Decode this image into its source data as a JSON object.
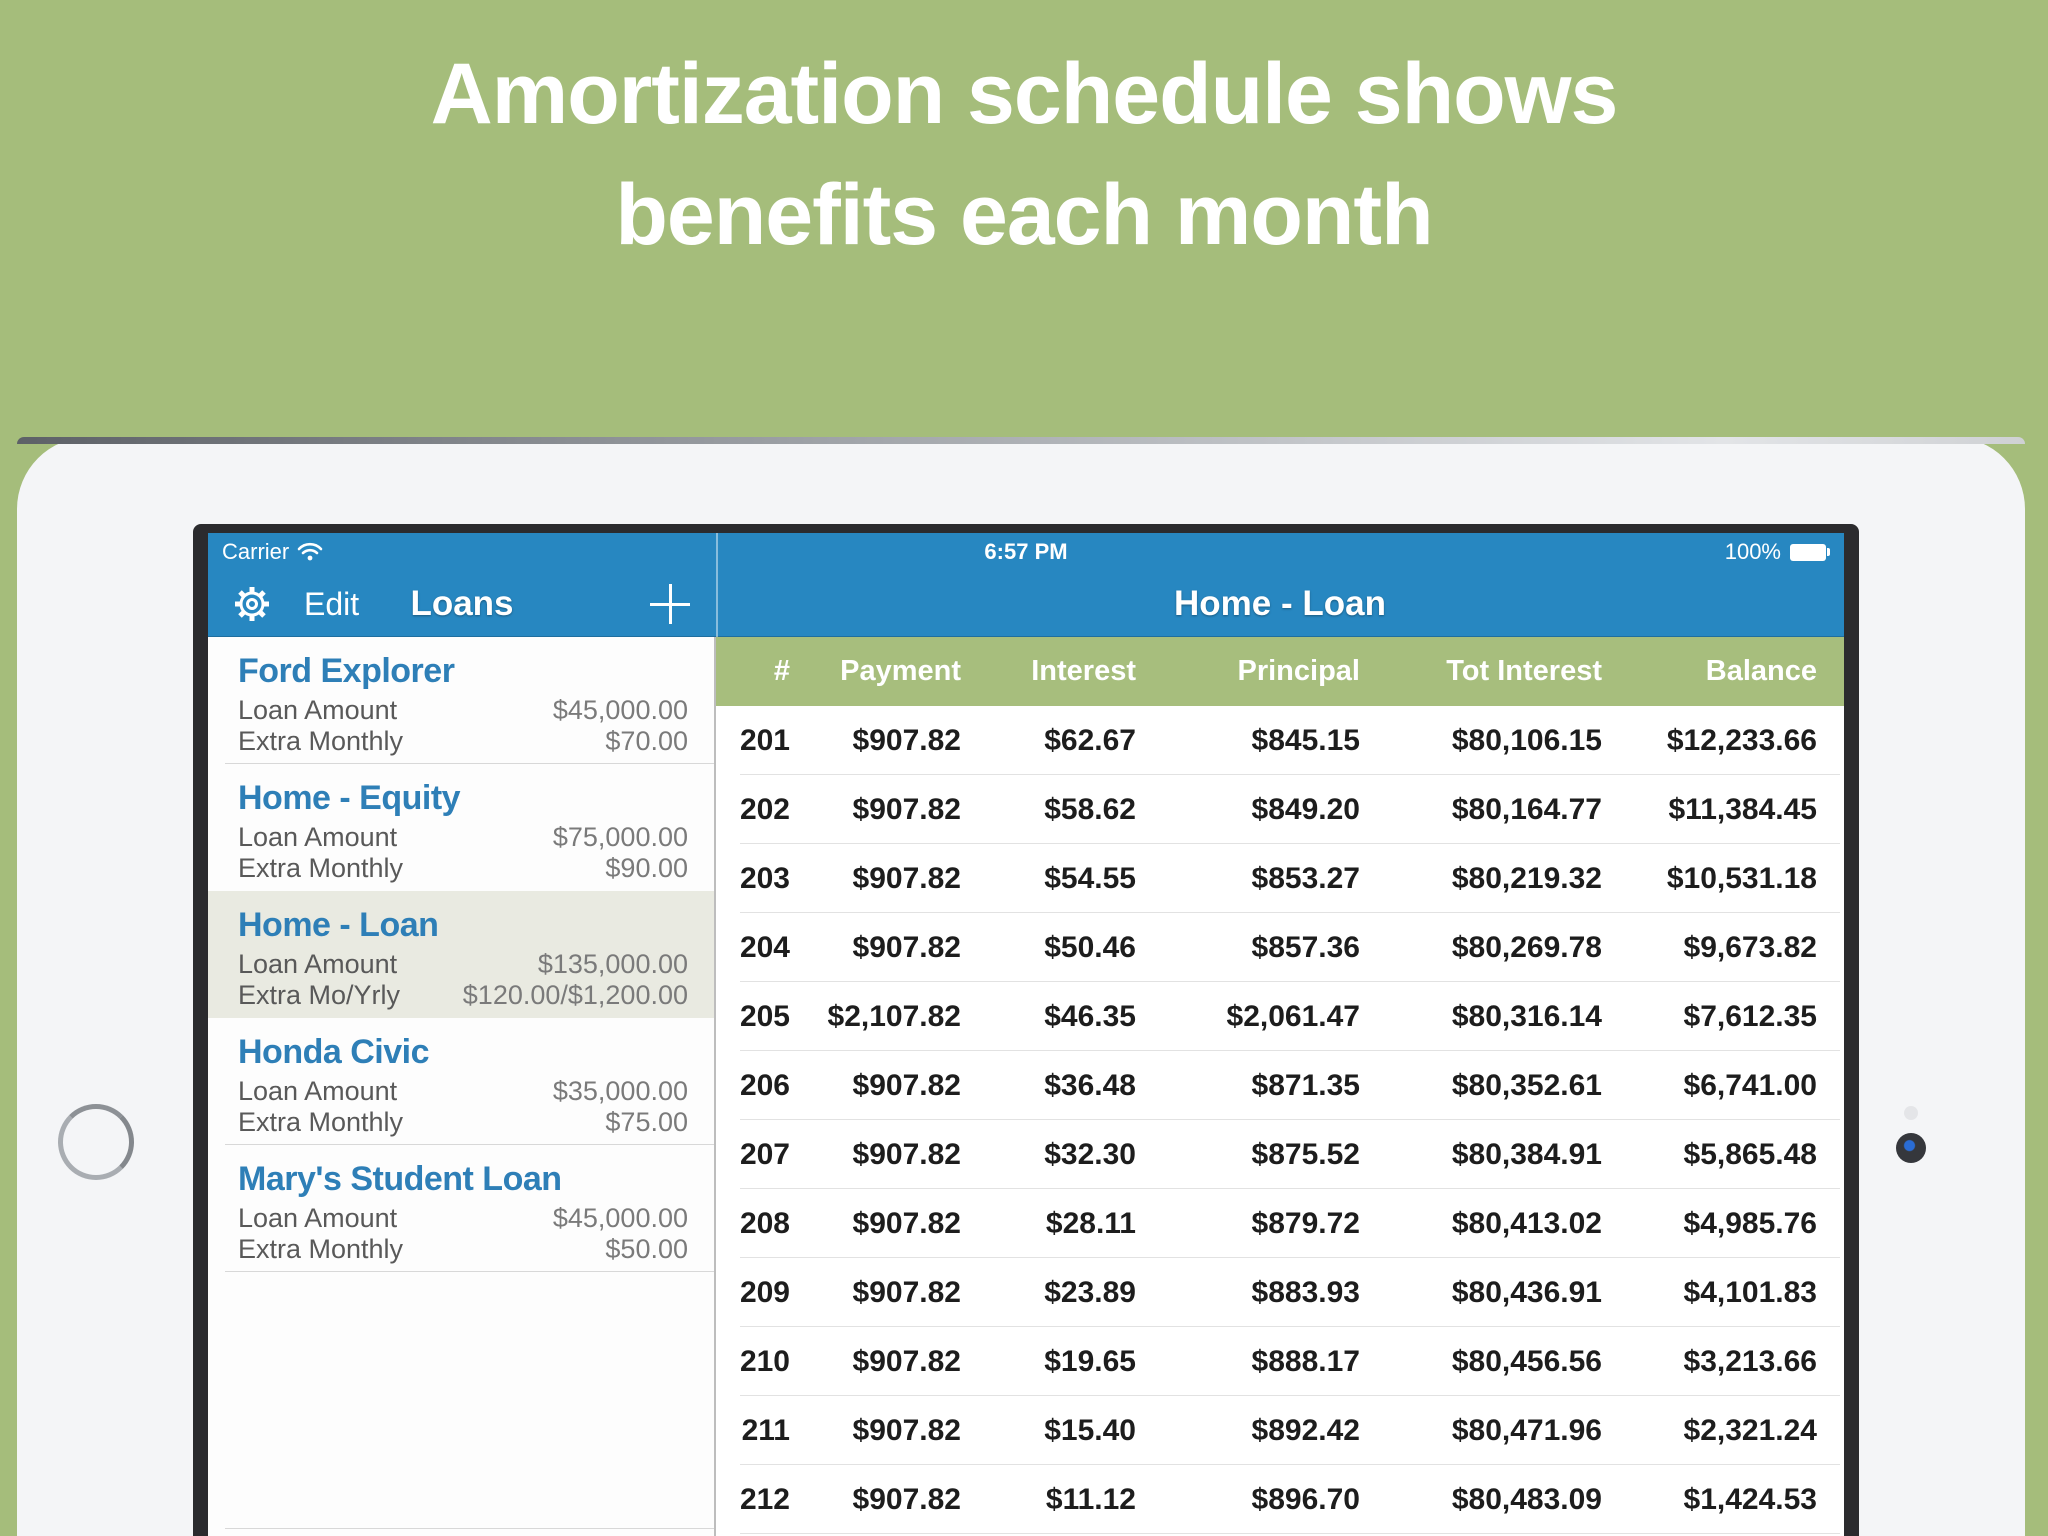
{
  "page": {
    "headline_line1": "Amortization schedule shows",
    "headline_line2": "benefits each month"
  },
  "colors": {
    "background_green": "#a5bd7b",
    "nav_blue": "#2787c1",
    "table_header_green": "#a7be7d",
    "loan_title_blue": "#2e7fb7",
    "selected_item_bg": "#e9eae1"
  },
  "status_bar": {
    "carrier": "Carrier",
    "time": "6:57 PM",
    "battery_percent": "100%",
    "icons": {
      "wifi": "wifi-icon",
      "battery": "battery-icon"
    }
  },
  "sidebar": {
    "nav": {
      "settings_icon": "gear-icon",
      "edit_label": "Edit",
      "title": "Loans",
      "add_icon": "plus-icon"
    },
    "loans": [
      {
        "name": "Ford Explorer",
        "selected": false,
        "divider": true,
        "rows": [
          {
            "label": "Loan Amount",
            "value": "$45,000.00"
          },
          {
            "label": "Extra Monthly",
            "value": "$70.00"
          }
        ]
      },
      {
        "name": "Home - Equity",
        "selected": false,
        "divider": false,
        "rows": [
          {
            "label": "Loan Amount",
            "value": "$75,000.00"
          },
          {
            "label": "Extra Monthly",
            "value": "$90.00"
          }
        ]
      },
      {
        "name": "Home - Loan",
        "selected": true,
        "divider": false,
        "rows": [
          {
            "label": "Loan Amount",
            "value": "$135,000.00"
          },
          {
            "label": "Extra Mo/Yrly",
            "value": "$120.00/$1,200.00"
          }
        ]
      },
      {
        "name": "Honda Civic",
        "selected": false,
        "divider": true,
        "rows": [
          {
            "label": "Loan Amount",
            "value": "$35,000.00"
          },
          {
            "label": "Extra Monthly",
            "value": "$75.00"
          }
        ]
      },
      {
        "name": "Mary's Student Loan",
        "selected": false,
        "divider": true,
        "rows": [
          {
            "label": "Loan Amount",
            "value": "$45,000.00"
          },
          {
            "label": "Extra Monthly",
            "value": "$50.00"
          }
        ]
      }
    ]
  },
  "detail": {
    "title": "Home - Loan",
    "table": {
      "columns": [
        "#",
        "Payment",
        "Interest",
        "Principal",
        "Tot Interest",
        "Balance"
      ],
      "rows": [
        [
          "201",
          "$907.82",
          "$62.67",
          "$845.15",
          "$80,106.15",
          "$12,233.66"
        ],
        [
          "202",
          "$907.82",
          "$58.62",
          "$849.20",
          "$80,164.77",
          "$11,384.45"
        ],
        [
          "203",
          "$907.82",
          "$54.55",
          "$853.27",
          "$80,219.32",
          "$10,531.18"
        ],
        [
          "204",
          "$907.82",
          "$50.46",
          "$857.36",
          "$80,269.78",
          "$9,673.82"
        ],
        [
          "205",
          "$2,107.82",
          "$46.35",
          "$2,061.47",
          "$80,316.14",
          "$7,612.35"
        ],
        [
          "206",
          "$907.82",
          "$36.48",
          "$871.35",
          "$80,352.61",
          "$6,741.00"
        ],
        [
          "207",
          "$907.82",
          "$32.30",
          "$875.52",
          "$80,384.91",
          "$5,865.48"
        ],
        [
          "208",
          "$907.82",
          "$28.11",
          "$879.72",
          "$80,413.02",
          "$4,985.76"
        ],
        [
          "209",
          "$907.82",
          "$23.89",
          "$883.93",
          "$80,436.91",
          "$4,101.83"
        ],
        [
          "210",
          "$907.82",
          "$19.65",
          "$888.17",
          "$80,456.56",
          "$3,213.66"
        ],
        [
          "211",
          "$907.82",
          "$15.40",
          "$892.42",
          "$80,471.96",
          "$2,321.24"
        ],
        [
          "212",
          "$907.82",
          "$11.12",
          "$896.70",
          "$80,483.09",
          "$1,424.53"
        ]
      ]
    }
  }
}
